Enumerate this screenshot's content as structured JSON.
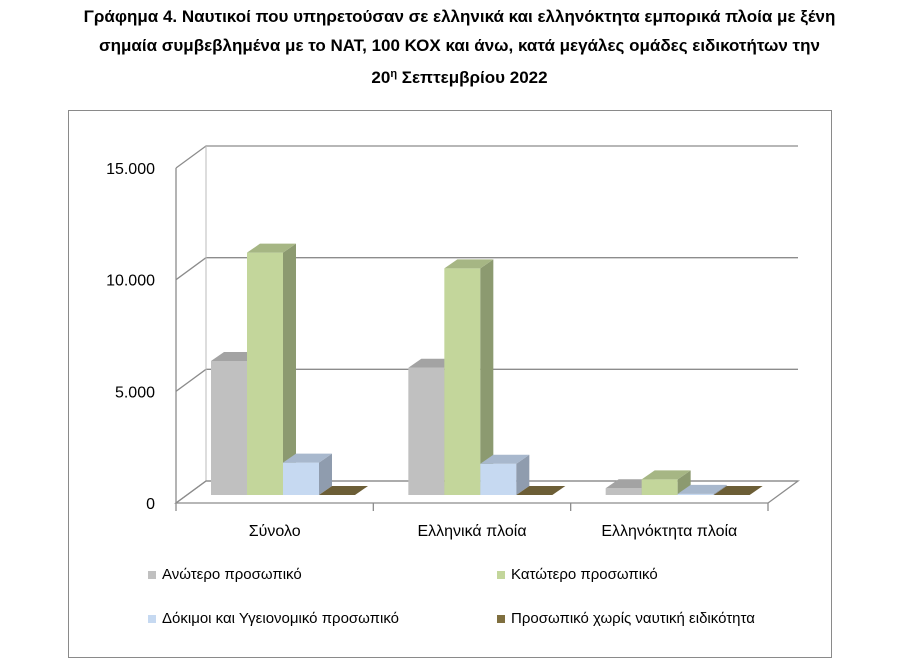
{
  "title": {
    "line1": "Γράφημα 4. Ναυτικοί που υπηρετούσαν σε ελληνικά και ελληνόκτητα εμπορικά πλοία με ξένη",
    "line2": "σημαία συμβεβλημένα με το ΝΑΤ, 100 ΚΟΧ και άνω, κατά μεγάλες ομάδες ειδικοτήτων την",
    "line3_pre": "20",
    "line3_sup": "η",
    "line3_post": " Σεπτεμβρίου 2022"
  },
  "chart_data": {
    "type": "bar",
    "style": "3d-clustered-column",
    "categories": [
      "Σύνολο",
      "Ελληνικά πλοία",
      "Ελληνόκτητα πλοία"
    ],
    "series": [
      {
        "name": "Ανώτερο προσωπικό",
        "values": [
          6000,
          5700,
          300
        ],
        "color": "#c0c0c0"
      },
      {
        "name": "Κατώτερο προσωπικό",
        "values": [
          10850,
          10150,
          700
        ],
        "color": "#c3d69b"
      },
      {
        "name": "Δόκιμοι και Υγειονομικό προσωπικό",
        "values": [
          1450,
          1400,
          50
        ],
        "color": "#c6d9f1"
      },
      {
        "name": "Προσωπικό χωρίς ναυτική ειδικότητα",
        "values": [
          0,
          0,
          0
        ],
        "color": "#7f6f3f"
      }
    ],
    "ylim": [
      0,
      15000
    ],
    "yticks": [
      0,
      5000,
      10000,
      15000
    ],
    "ytick_labels": [
      "0",
      "5.000",
      "10.000",
      "15.000"
    ],
    "grid": true,
    "legend": "bottom"
  }
}
